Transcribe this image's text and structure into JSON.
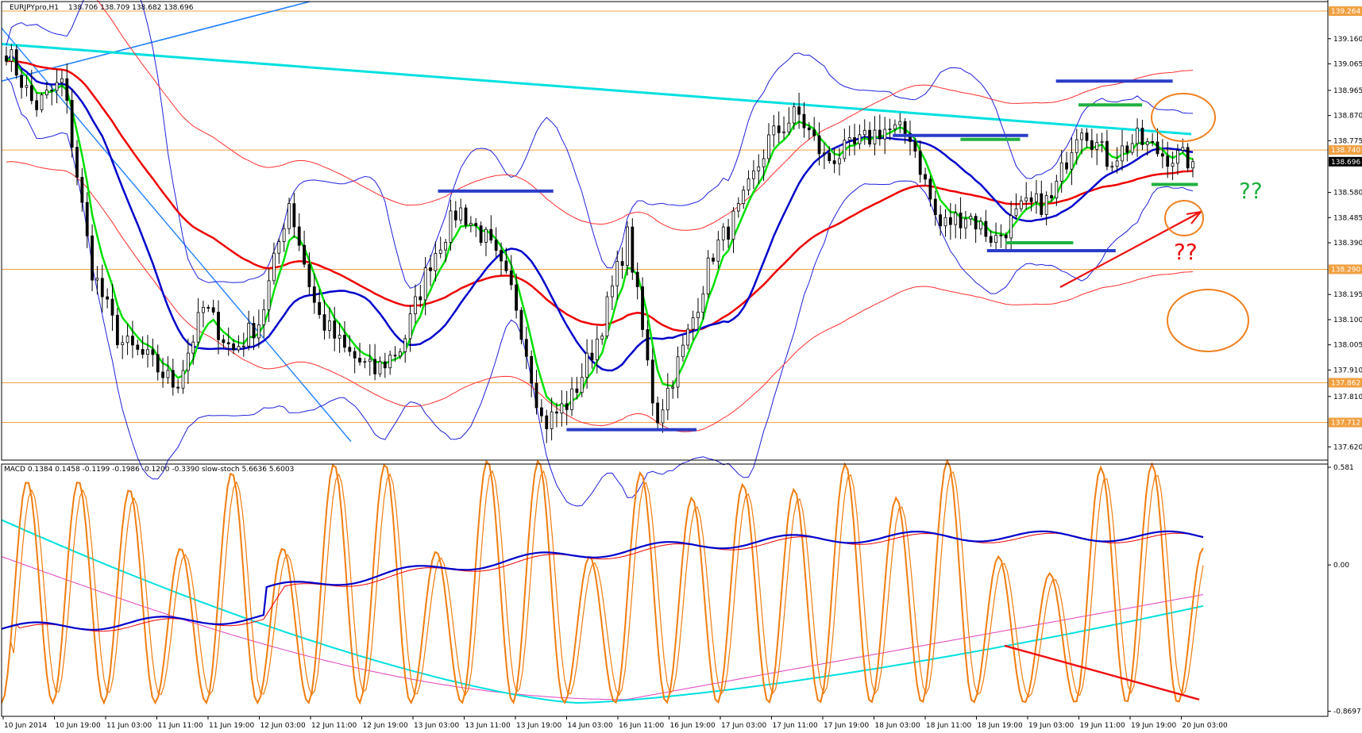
{
  "header": {
    "symbol_text": "EURJPYpro,H1",
    "ohlc_text": "138.706 138.709 138.682 138.696",
    "indicator_text": "MACD 0.1384 0.1458 -0.1199 -0.1986 -0.1200 -0.3390  slow-stoch 5.6636 5.6003"
  },
  "annotations": {
    "question_green": "??",
    "question_red": "??"
  },
  "colors": {
    "candle": "#000000",
    "ema_fast": "#00e000",
    "ema_mid": "#0000cc",
    "ema_slow": "#ee0000",
    "bollinger": "#2020dd",
    "env": "#ff3030",
    "cyan": "#00e0e0",
    "trend_blue": "#2080ff",
    "hlines": "#f0a040",
    "level_blue": "#2a3dc8",
    "level_green": "#20b040",
    "circle": "#f08020",
    "stoch": "#f07d10",
    "magenta": "#e040c0",
    "price_label_bg": "#f0a040"
  },
  "chart_data": [
    {
      "type": "candlestick",
      "title": "EURJPYpro,H1",
      "ylim": [
        137.57,
        139.3
      ],
      "y_ticks": [
        "139.160",
        "139.065",
        "138.965",
        "138.870",
        "138.775",
        "138.580",
        "138.485",
        "138.390",
        "138.195",
        "138.100",
        "138.005",
        "137.910",
        "137.810",
        "137.620"
      ],
      "price_labels": [
        {
          "value": 139.264,
          "text": "139.264",
          "dark": false
        },
        {
          "value": 138.74,
          "text": "138.740",
          "dark": false
        },
        {
          "value": 138.696,
          "text": "138.696",
          "dark": true
        },
        {
          "value": 138.29,
          "text": "138.290",
          "dark": false
        },
        {
          "value": 137.862,
          "text": "137.862",
          "dark": false
        },
        {
          "value": 137.712,
          "text": "137.712",
          "dark": false
        }
      ],
      "x_labels": [
        "10 Jun 2014",
        "10 Jun 19:00",
        "11 Jun 03:00",
        "11 Jun 11:00",
        "11 Jun 19:00",
        "12 Jun 03:00",
        "12 Jun 11:00",
        "12 Jun 19:00",
        "13 Jun 03:00",
        "13 Jun 11:00",
        "13 Jun 19:00",
        "14 Jun 03:00",
        "16 Jun 11:00",
        "16 Jun 19:00",
        "17 Jun 03:00",
        "17 Jun 11:00",
        "17 Jun 19:00",
        "18 Jun 03:00",
        "18 Jun 11:00",
        "18 Jun 19:00",
        "19 Jun 03:00",
        "19 Jun 11:00",
        "19 Jun 19:00",
        "20 Jun 03:00"
      ],
      "last_close": 138.696,
      "path": [
        139.12,
        138.9,
        139.0,
        138.3,
        138.02,
        137.95,
        137.85,
        138.15,
        137.98,
        138.1,
        138.55,
        138.12,
        137.98,
        137.9,
        138.0,
        138.32,
        138.52,
        138.4,
        138.18,
        137.7,
        137.8,
        138.05,
        138.42,
        137.72,
        138.0,
        138.35,
        138.52,
        138.78,
        138.88,
        138.7,
        138.75,
        138.82,
        138.8,
        138.45,
        138.5,
        138.4,
        138.52,
        138.55,
        138.85,
        138.7,
        138.78,
        138.72,
        138.7
      ],
      "horizontal_lines": [
        139.264,
        138.74,
        138.29,
        137.862,
        137.712
      ],
      "blue_levels": [
        {
          "t0": 0.329,
          "t1": 0.416,
          "value": 138.585
        },
        {
          "t0": 0.426,
          "t1": 0.524,
          "value": 137.685
        },
        {
          "t0": 0.672,
          "t1": 0.774,
          "value": 138.795
        },
        {
          "t0": 0.795,
          "t1": 0.883,
          "value": 139.0
        },
        {
          "t0": 0.743,
          "t1": 0.84,
          "value": 138.36
        }
      ],
      "green_levels": [
        {
          "t0": 0.723,
          "t1": 0.768,
          "value": 138.78
        },
        {
          "t0": 0.812,
          "t1": 0.86,
          "value": 138.91
        },
        {
          "t0": 0.757,
          "t1": 0.808,
          "value": 138.39
        },
        {
          "t0": 0.867,
          "t1": 0.902,
          "value": 138.61
        }
      ]
    },
    {
      "type": "line",
      "title": "MACD / slow-stoch",
      "ylim": [
        -0.9,
        0.6
      ],
      "y_ticks": [
        "0.581",
        "0.00",
        "-0.8697"
      ],
      "stoch_peaks": [
        0.5,
        0.5,
        0.45,
        0.1,
        0.55,
        0.1,
        0.6,
        0.6,
        0.08,
        0.62,
        0.62,
        0.05,
        0.55,
        0.4,
        0.48,
        0.45,
        0.6,
        0.4,
        0.62,
        0.05,
        -0.05,
        0.58,
        0.6,
        0.1
      ]
    }
  ]
}
